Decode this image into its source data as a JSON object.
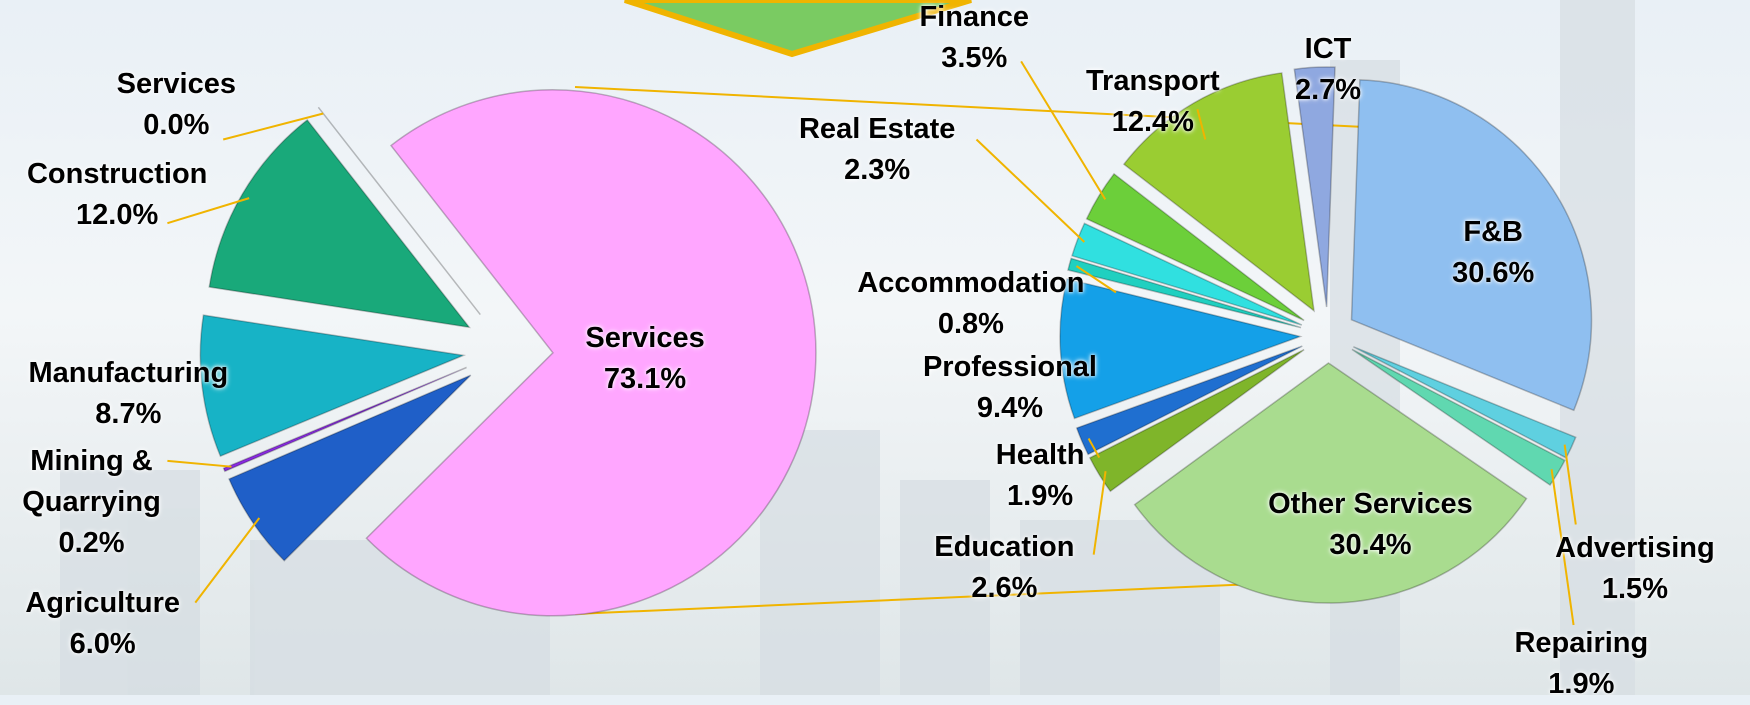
{
  "chart_data": [
    {
      "type": "pie",
      "categories": [
        "Services",
        "Agriculture",
        "Mining & Quarrying",
        "Manufacturing",
        "Construction",
        "Services"
      ],
      "values": [
        73.1,
        6.0,
        0.2,
        8.7,
        12.0,
        0.0
      ],
      "value_labels": [
        "73.1%",
        "6.0%",
        "0.2%",
        "8.7%",
        "12.0%",
        "0.0%"
      ],
      "colors": [
        "#ffa6ff",
        "#1f5fc8",
        "#8a2be2",
        "#17b3c6",
        "#19a97a",
        "#9a9a9a"
      ]
    },
    {
      "type": "pie",
      "categories": [
        "F&B",
        "Advertising",
        "Repairing",
        "Other Services",
        "Education",
        "Health",
        "Professional",
        "Accommodation",
        "Real Estate",
        "Finance",
        "Transport",
        "ICT"
      ],
      "values": [
        30.6,
        1.5,
        1.9,
        30.4,
        2.6,
        1.9,
        9.4,
        0.8,
        2.3,
        3.5,
        12.4,
        2.7
      ],
      "value_labels": [
        "30.6%",
        "1.5%",
        "1.9%",
        "30.4%",
        "2.6%",
        "1.9%",
        "9.4%",
        "0.8%",
        "2.3%",
        "3.5%",
        "12.4%",
        "2.7%"
      ],
      "colors": [
        "#8fbff0",
        "#5fd0e0",
        "#60d8b0",
        "#a9dc8f",
        "#7fb52a",
        "#1f6fd0",
        "#14a0e8",
        "#20d0c0",
        "#30e0e0",
        "#6ccf3a",
        "#9acd32",
        "#8fa8e0"
      ]
    }
  ]
}
